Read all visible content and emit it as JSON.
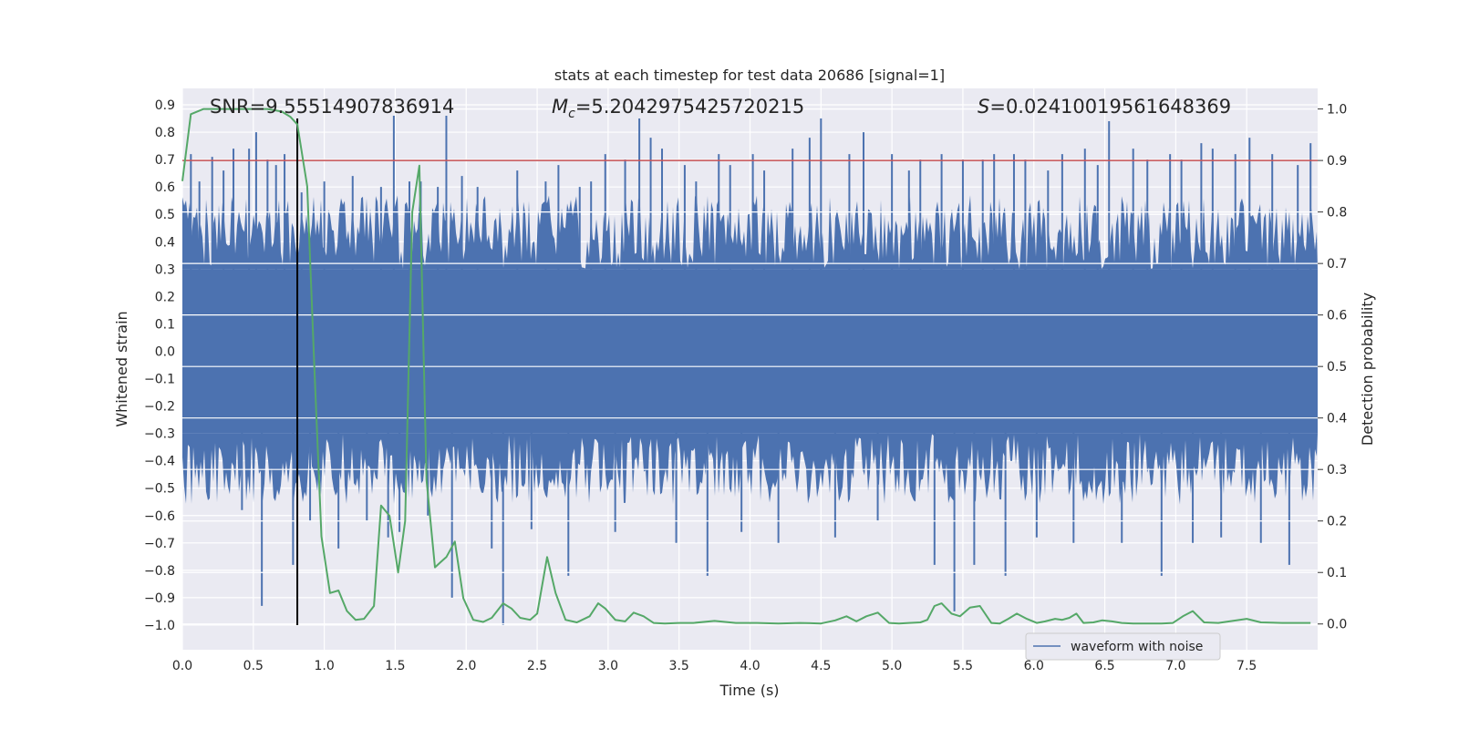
{
  "chart_data": {
    "type": "line",
    "title": "stats at each timestep for test data 20686 [signal=1]",
    "xlabel": "Time (s)",
    "ylabel_left": "Whitened strain",
    "ylabel_right": "Detection probability",
    "xlim": [
      0,
      8
    ],
    "ylim_left": [
      -1.09,
      0.96
    ],
    "ylim_right": [
      -0.05,
      1.04
    ],
    "x_ticks": [
      "0.0",
      "0.5",
      "1.0",
      "1.5",
      "2.0",
      "2.5",
      "3.0",
      "3.5",
      "4.0",
      "4.5",
      "5.0",
      "5.5",
      "6.0",
      "6.5",
      "7.0",
      "7.5"
    ],
    "y_left_ticks": [
      "0.9",
      "0.8",
      "0.7",
      "0.6",
      "0.5",
      "0.4",
      "0.3",
      "0.2",
      "0.1",
      "0.0",
      "−0.1",
      "−0.2",
      "−0.3",
      "−0.4",
      "−0.5",
      "−0.6",
      "−0.7",
      "−0.8",
      "−0.9",
      "−1.0"
    ],
    "y_right_ticks": [
      "0.0",
      "0.1",
      "0.2",
      "0.3",
      "0.4",
      "0.5",
      "0.6",
      "0.7",
      "0.8",
      "0.9",
      "1.0"
    ],
    "grid": true,
    "legend": {
      "placement": "lower-right",
      "entries": [
        "waveform with noise"
      ]
    },
    "annotations": {
      "snr": "SNR=9.55514907836914",
      "mc_symbol": "M",
      "mc_sub": "c",
      "mc_value": "=5.2042975425720215",
      "s_symbol": "S",
      "s_value": "=0.02410019561648369"
    },
    "threshold": {
      "value": 0.9,
      "axis": "right",
      "color": "#c44e52"
    },
    "merger_marker": {
      "x": 0.81,
      "y_from": -1.0,
      "y_to": 0.85,
      "color": "#000000"
    },
    "series": [
      {
        "name": "waveform with noise",
        "axis": "left",
        "color": "#4c72b0",
        "dense_band": [
          -0.44,
          0.45
        ],
        "spikes": [
          [
            0.06,
            0.72
          ],
          [
            0.12,
            0.62
          ],
          [
            0.21,
            0.71
          ],
          [
            0.29,
            0.66
          ],
          [
            0.36,
            0.74
          ],
          [
            0.42,
            -0.58
          ],
          [
            0.47,
            0.74
          ],
          [
            0.52,
            0.8
          ],
          [
            0.56,
            -0.93
          ],
          [
            0.6,
            0.7
          ],
          [
            0.66,
            0.68
          ],
          [
            0.72,
            0.72
          ],
          [
            0.78,
            -0.78
          ],
          [
            0.84,
            0.58
          ],
          [
            0.9,
            -0.62
          ],
          [
            1.0,
            0.62
          ],
          [
            1.1,
            -0.72
          ],
          [
            1.2,
            0.64
          ],
          [
            1.3,
            -0.62
          ],
          [
            1.4,
            0.6
          ],
          [
            1.45,
            -0.68
          ],
          [
            1.49,
            0.86
          ],
          [
            1.53,
            -0.66
          ],
          [
            1.6,
            0.62
          ],
          [
            1.68,
            0.62
          ],
          [
            1.73,
            -0.6
          ],
          [
            1.8,
            0.6
          ],
          [
            1.86,
            0.86
          ],
          [
            1.9,
            -0.9
          ],
          [
            1.97,
            0.64
          ],
          [
            2.08,
            0.6
          ],
          [
            2.18,
            -0.72
          ],
          [
            2.26,
            -1.0
          ],
          [
            2.36,
            0.66
          ],
          [
            2.46,
            -0.65
          ],
          [
            2.56,
            0.62
          ],
          [
            2.65,
            0.68
          ],
          [
            2.72,
            -0.82
          ],
          [
            2.8,
            0.6
          ],
          [
            2.88,
            0.62
          ],
          [
            2.98,
            0.72
          ],
          [
            3.05,
            -0.66
          ],
          [
            3.12,
            0.7
          ],
          [
            3.22,
            0.85
          ],
          [
            3.3,
            0.78
          ],
          [
            3.38,
            0.74
          ],
          [
            3.48,
            -0.7
          ],
          [
            3.54,
            0.68
          ],
          [
            3.62,
            0.62
          ],
          [
            3.7,
            -0.82
          ],
          [
            3.78,
            0.72
          ],
          [
            3.86,
            0.68
          ],
          [
            3.94,
            -0.66
          ],
          [
            4.02,
            0.72
          ],
          [
            4.1,
            0.66
          ],
          [
            4.2,
            -0.7
          ],
          [
            4.3,
            0.74
          ],
          [
            4.42,
            0.78
          ],
          [
            4.5,
            0.85
          ],
          [
            4.6,
            -0.68
          ],
          [
            4.7,
            0.72
          ],
          [
            4.8,
            0.8
          ],
          [
            4.9,
            -0.62
          ],
          [
            5.0,
            0.72
          ],
          [
            5.12,
            0.66
          ],
          [
            5.2,
            0.7
          ],
          [
            5.3,
            -0.78
          ],
          [
            5.35,
            0.72
          ],
          [
            5.44,
            -0.95
          ],
          [
            5.5,
            0.7
          ],
          [
            5.58,
            -0.78
          ],
          [
            5.64,
            0.7
          ],
          [
            5.72,
            0.72
          ],
          [
            5.8,
            -0.82
          ],
          [
            5.86,
            0.72
          ],
          [
            5.94,
            0.7
          ],
          [
            6.02,
            -0.68
          ],
          [
            6.1,
            0.66
          ],
          [
            6.2,
            0.72
          ],
          [
            6.28,
            -0.7
          ],
          [
            6.36,
            0.74
          ],
          [
            6.45,
            0.68
          ],
          [
            6.53,
            0.84
          ],
          [
            6.62,
            -0.7
          ],
          [
            6.7,
            0.74
          ],
          [
            6.8,
            0.7
          ],
          [
            6.9,
            -0.82
          ],
          [
            6.96,
            0.72
          ],
          [
            7.04,
            0.7
          ],
          [
            7.12,
            -0.7
          ],
          [
            7.18,
            0.76
          ],
          [
            7.26,
            0.74
          ],
          [
            7.32,
            -0.68
          ],
          [
            7.42,
            0.72
          ],
          [
            7.52,
            0.78
          ],
          [
            7.6,
            -0.7
          ],
          [
            7.68,
            0.72
          ],
          [
            7.8,
            -0.78
          ],
          [
            7.86,
            0.68
          ],
          [
            7.95,
            0.76
          ]
        ]
      },
      {
        "name": "detection probability",
        "axis": "right",
        "color": "#55a868",
        "x": [
          0.0,
          0.06,
          0.15,
          0.3,
          0.45,
          0.6,
          0.7,
          0.76,
          0.81,
          0.88,
          0.93,
          0.98,
          1.04,
          1.1,
          1.16,
          1.22,
          1.28,
          1.35,
          1.4,
          1.46,
          1.52,
          1.57,
          1.62,
          1.67,
          1.72,
          1.78,
          1.82,
          1.86,
          1.92,
          1.98,
          2.05,
          2.12,
          2.18,
          2.26,
          2.32,
          2.38,
          2.45,
          2.5,
          2.57,
          2.63,
          2.7,
          2.78,
          2.87,
          2.93,
          2.98,
          3.05,
          3.12,
          3.18,
          3.25,
          3.32,
          3.4,
          3.5,
          3.6,
          3.75,
          3.9,
          4.05,
          4.2,
          4.35,
          4.5,
          4.6,
          4.68,
          4.75,
          4.82,
          4.9,
          4.98,
          5.05,
          5.12,
          5.2,
          5.25,
          5.3,
          5.35,
          5.42,
          5.48,
          5.55,
          5.62,
          5.7,
          5.76,
          5.82,
          5.88,
          5.95,
          6.02,
          6.08,
          6.15,
          6.2,
          6.25,
          6.3,
          6.35,
          6.42,
          6.48,
          6.55,
          6.62,
          6.7,
          6.8,
          6.9,
          6.98,
          7.05,
          7.12,
          7.2,
          7.3,
          7.4,
          7.5,
          7.6,
          7.75,
          7.95
        ],
        "y": [
          0.86,
          0.99,
          1.0,
          1.0,
          1.0,
          1.0,
          0.995,
          0.985,
          0.97,
          0.85,
          0.5,
          0.17,
          0.06,
          0.065,
          0.025,
          0.008,
          0.01,
          0.035,
          0.23,
          0.21,
          0.1,
          0.2,
          0.8,
          0.89,
          0.28,
          0.11,
          0.12,
          0.13,
          0.16,
          0.05,
          0.008,
          0.004,
          0.012,
          0.04,
          0.03,
          0.012,
          0.008,
          0.02,
          0.13,
          0.06,
          0.008,
          0.003,
          0.015,
          0.04,
          0.03,
          0.008,
          0.005,
          0.022,
          0.015,
          0.002,
          0.001,
          0.002,
          0.002,
          0.006,
          0.002,
          0.002,
          0.001,
          0.002,
          0.001,
          0.007,
          0.015,
          0.005,
          0.015,
          0.022,
          0.002,
          0.001,
          0.002,
          0.003,
          0.008,
          0.035,
          0.04,
          0.02,
          0.015,
          0.032,
          0.035,
          0.002,
          0.001,
          0.01,
          0.02,
          0.01,
          0.002,
          0.005,
          0.01,
          0.008,
          0.012,
          0.02,
          0.002,
          0.003,
          0.007,
          0.005,
          0.002,
          0.001,
          0.001,
          0.001,
          0.002,
          0.015,
          0.025,
          0.003,
          0.002,
          0.006,
          0.01,
          0.003,
          0.002,
          0.002
        ]
      }
    ]
  }
}
